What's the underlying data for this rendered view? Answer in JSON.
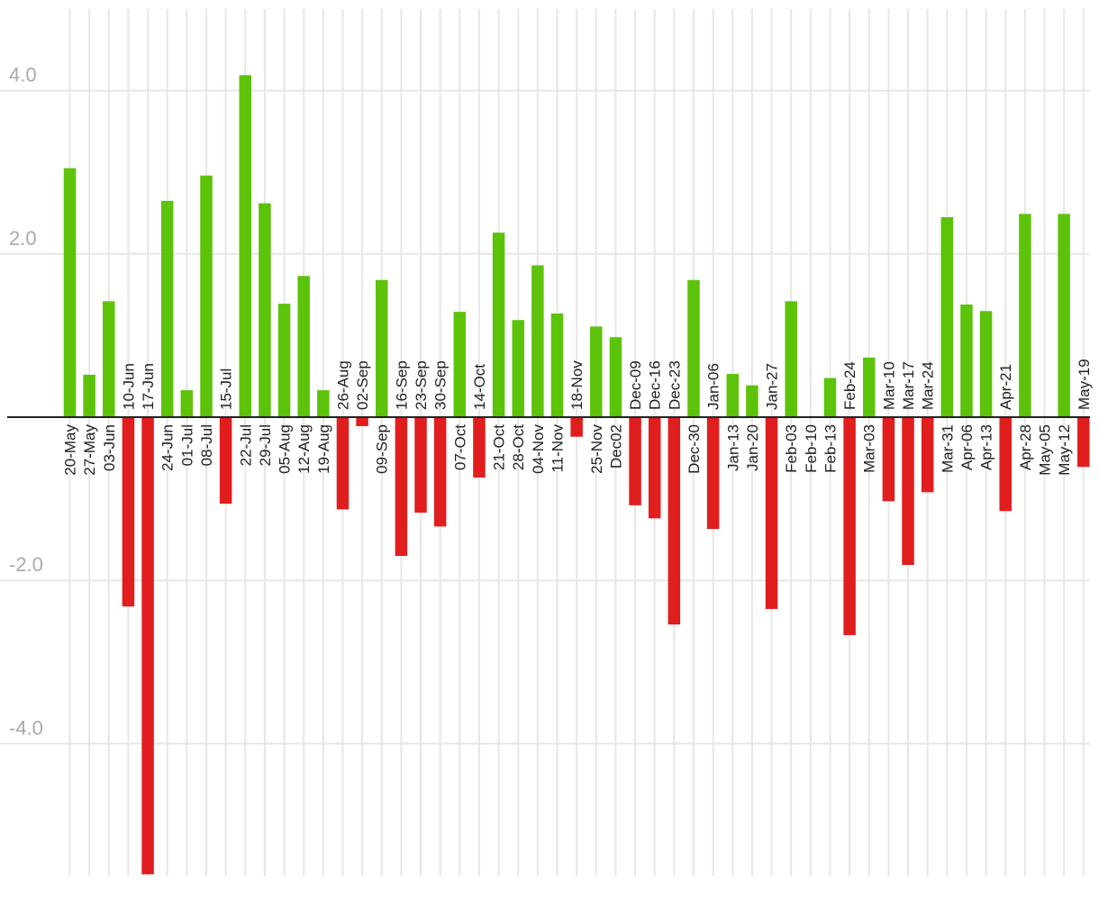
{
  "chart_data": {
    "type": "bar",
    "title": "",
    "xlabel": "",
    "ylabel": "",
    "ylim": [
      -5.6,
      5.0
    ],
    "yticks": [
      4.0,
      2.0,
      -2.0,
      -4.0
    ],
    "ytick_labels": [
      "4.0",
      "2.0",
      "-2.0",
      "-4.0"
    ],
    "grid": true,
    "colors": {
      "positive": "#5cc30a",
      "negative": "#e01e1e",
      "grid": "#e6e6e6",
      "axis": "#222222",
      "tick_text": "#aaaaaa"
    },
    "categories": [
      "20-May",
      "27-May",
      "03-Jun",
      "10-Jun",
      "17-Jun",
      "24-Jun",
      "01-Jul",
      "08-Jul",
      "15-Jul",
      "22-Jul",
      "29-Jul",
      "05-Aug",
      "12-Aug",
      "19-Aug",
      "26-Aug",
      "02-Sep",
      "09-Sep",
      "16-Sep",
      "23-Sep",
      "30-Sep",
      "07-Oct",
      "14-Oct",
      "21-Oct",
      "28-Oct",
      "04-Nov",
      "11-Nov",
      "18-Nov",
      "25-Nov",
      "Dec02",
      "Dec-09",
      "Dec-16",
      "Dec-23",
      "Dec-30",
      "Jan-06",
      "Jan-13",
      "Jan-20",
      "Jan-27",
      "Feb-03",
      "Feb-10",
      "Feb-13",
      "Feb-24",
      "Mar-03",
      "Mar-10",
      "Mar-17",
      "Mar-24",
      "Mar-31",
      "Apr-06",
      "Apr-13",
      "Apr-21",
      "Apr-28",
      "May-05",
      "May-12",
      "May-19"
    ],
    "values": [
      3.05,
      0.52,
      1.42,
      -2.32,
      -5.6,
      2.65,
      0.33,
      2.96,
      -1.06,
      4.19,
      2.62,
      1.39,
      1.73,
      0.33,
      -1.13,
      -0.11,
      1.68,
      -1.7,
      -1.17,
      -1.34,
      1.29,
      -0.74,
      2.26,
      1.19,
      1.86,
      1.27,
      -0.24,
      1.11,
      0.98,
      -1.08,
      -1.24,
      -2.54,
      1.68,
      -1.37,
      0.53,
      0.39,
      -2.35,
      1.42,
      0.0,
      0.48,
      -2.67,
      0.73,
      -1.03,
      -1.81,
      -0.92,
      2.45,
      1.38,
      1.3,
      -1.15,
      2.49,
      0.0,
      2.49,
      -0.61
    ]
  }
}
